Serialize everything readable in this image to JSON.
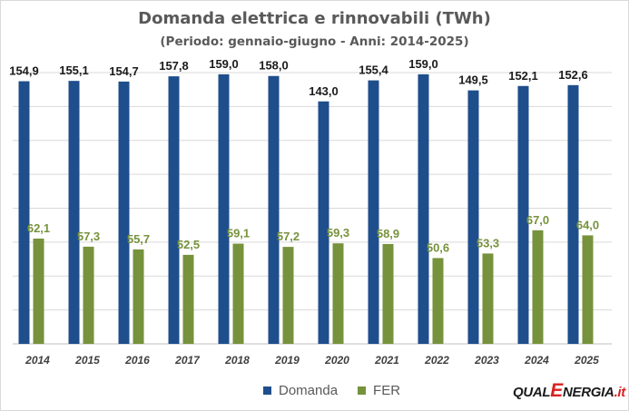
{
  "chart_data": {
    "type": "bar",
    "title": "Domanda elettrica e rinnovabili (TWh)",
    "subtitle": "(Periodo: gennaio-giugno - Anni: 2014-2025)",
    "categories": [
      "2014",
      "2015",
      "2016",
      "2017",
      "2018",
      "2019",
      "2020",
      "2021",
      "2022",
      "2023",
      "2024",
      "2025"
    ],
    "series": [
      {
        "name": "Domanda",
        "color": "#1f4e8c",
        "values": [
          154.9,
          155.1,
          154.7,
          157.8,
          159.0,
          158.0,
          143.0,
          155.4,
          159.0,
          149.5,
          152.1,
          152.6
        ],
        "labels": [
          "154,9",
          "155,1",
          "154,7",
          "157,8",
          "159,0",
          "158,0",
          "143,0",
          "155,4",
          "159,0",
          "149,5",
          "152,1",
          "152,6"
        ],
        "label_color": "#1a1a1a"
      },
      {
        "name": "FER",
        "color": "#76923c",
        "values": [
          62.1,
          57.3,
          55.7,
          52.5,
          59.1,
          57.2,
          59.3,
          58.9,
          50.6,
          53.3,
          67.0,
          64.0
        ],
        "labels": [
          "62,1",
          "57,3",
          "55,7",
          "52,5",
          "59,1",
          "57,2",
          "59,3",
          "58,9",
          "50,6",
          "53,3",
          "67,0",
          "64,0"
        ],
        "label_color": "#76923c"
      }
    ],
    "ylim": [
      0,
      160
    ],
    "grid": true,
    "legend": "bottom"
  },
  "logo": {
    "part1": "QUAL",
    "part2": "E",
    "part3": "NERGIA",
    "part4": ".it"
  }
}
